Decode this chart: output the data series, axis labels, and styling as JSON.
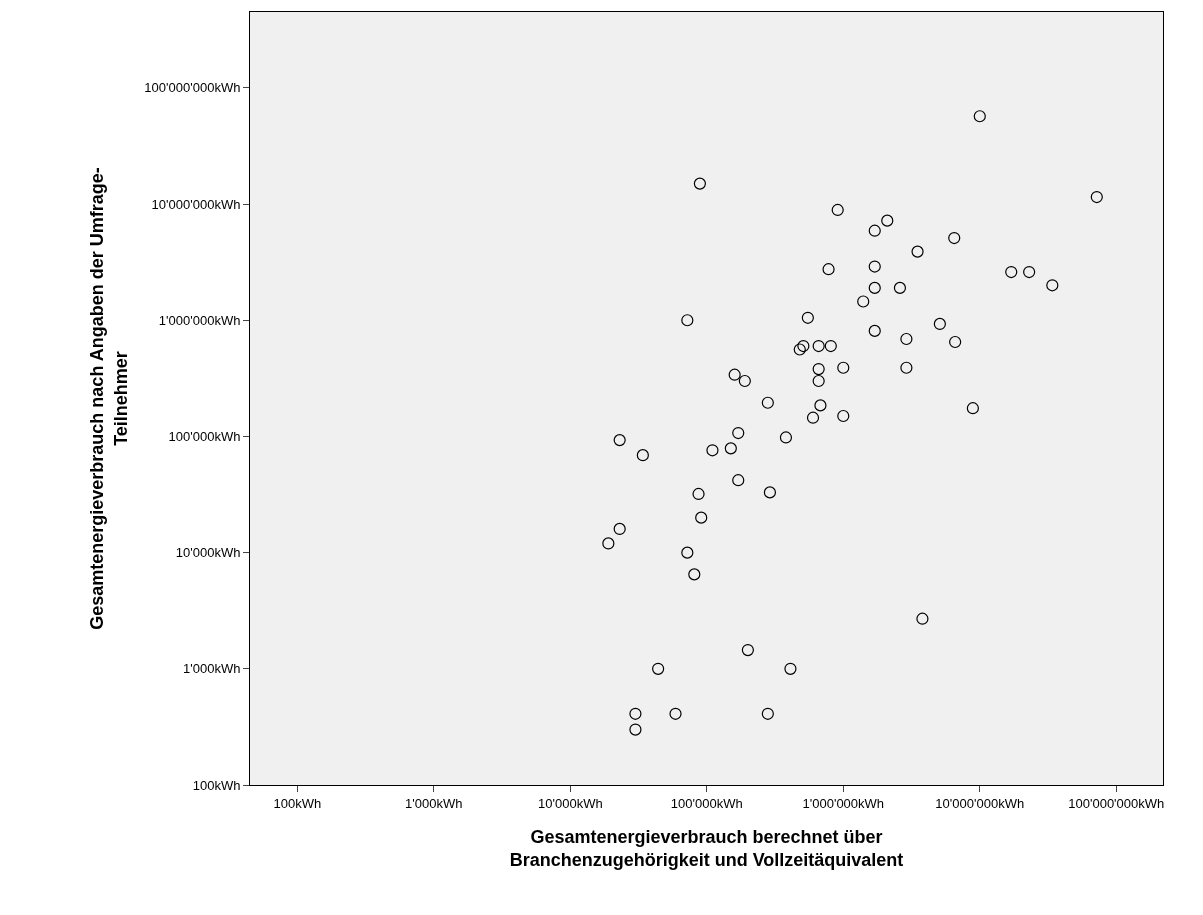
{
  "chart_data": {
    "type": "scatter",
    "xlabel": "Gesamtenergieverbrauch berechnet über\nBranchenzugehörigkeit und Vollzeitäquivalent",
    "ylabel": "Gesamtenergieverbrauch nach Angaben der Umfrage-\nTeilnehmer",
    "log": "xy",
    "grid": false,
    "legend": false,
    "marker": "circle",
    "xlim": [
      45,
      220000000
    ],
    "ylim": [
      100,
      450000000
    ],
    "xticks": [
      {
        "value": 100,
        "label": "100kWh"
      },
      {
        "value": 1000,
        "label": "1'000kWh"
      },
      {
        "value": 10000,
        "label": "10'000kWh"
      },
      {
        "value": 100000,
        "label": "100'000kWh"
      },
      {
        "value": 1000000,
        "label": "1'000'000kWh"
      },
      {
        "value": 10000000,
        "label": "10'000'000kWh"
      },
      {
        "value": 100000000,
        "label": "100'000'000kWh"
      }
    ],
    "yticks": [
      {
        "value": 100,
        "label": "100kWh"
      },
      {
        "value": 1000,
        "label": "1'000kWh"
      },
      {
        "value": 10000,
        "label": "10'000kWh"
      },
      {
        "value": 100000,
        "label": "100'000kWh"
      },
      {
        "value": 1000000,
        "label": "1'000'000kWh"
      },
      {
        "value": 10000000,
        "label": "10'000'000kWh"
      },
      {
        "value": 100000000,
        "label": "100'000'000kWh"
      }
    ],
    "series": [
      {
        "color": "#000000",
        "x": [
          10000000,
          89000,
          72000000,
          910000,
          2100000,
          1700000,
          6500000,
          3500000,
          780000,
          1700000,
          17000000,
          23000000,
          34000000,
          1700000,
          2600000,
          1400000,
          550000,
          72000,
          5100000,
          1700000,
          2900000,
          6600000,
          510000,
          480000,
          660000,
          810000,
          160000,
          660000,
          1000000,
          2900000,
          190000,
          660000,
          280000,
          680000,
          8900000,
          600000,
          1000000,
          170000,
          380000,
          23000,
          110000,
          150000,
          34000,
          170000,
          87000,
          290000,
          91000,
          23000,
          19000,
          72000,
          81000,
          3800000,
          200000,
          44000,
          410000,
          30000,
          59000,
          280000,
          30000
        ],
        "values": [
          57000000,
          15000000,
          11500000,
          8900000,
          7200000,
          5900000,
          5100000,
          3900000,
          2750000,
          2900000,
          2600000,
          2600000,
          2000000,
          1900000,
          1900000,
          1450000,
          1050000,
          1000000,
          930000,
          810000,
          690000,
          650000,
          600000,
          560000,
          600000,
          600000,
          340000,
          380000,
          390000,
          390000,
          300000,
          300000,
          195000,
          185000,
          175000,
          145000,
          150000,
          107000,
          98000,
          93000,
          76000,
          79000,
          69000,
          42000,
          32000,
          33000,
          20000,
          16000,
          12000,
          10000,
          6500,
          2700,
          1450,
          1000,
          1000,
          410,
          410,
          410,
          300
        ]
      }
    ]
  }
}
